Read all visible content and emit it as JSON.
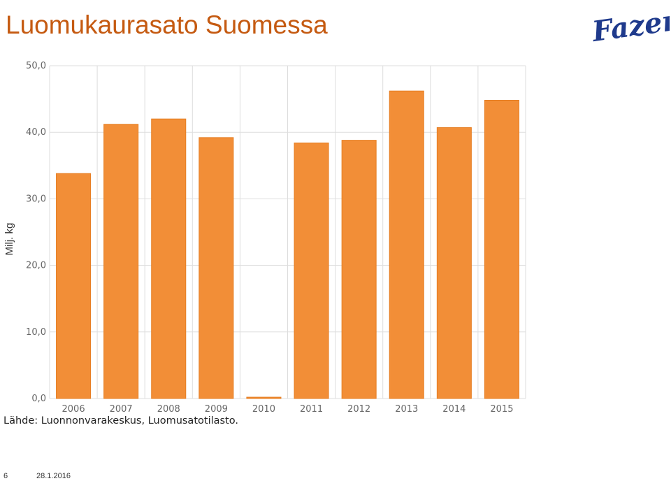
{
  "slide": {
    "title": "Luomukaurasato Suomessa",
    "logo_text": "Fazer",
    "source": "Lähde: Luonnonvarakeskus, Luomusatotilasto.",
    "page_number": "6",
    "date": "28.1.2016"
  },
  "colors": {
    "title": "#c55a11",
    "bar": "#f28e37",
    "logo": "#1f3a8c",
    "grid": "#dddddd"
  },
  "chart_data": {
    "type": "bar",
    "categories": [
      "2006",
      "2007",
      "2008",
      "2009",
      "2010",
      "2011",
      "2012",
      "2013",
      "2014",
      "2015"
    ],
    "values": [
      33.8,
      41.2,
      42.0,
      39.2,
      0.2,
      38.4,
      38.8,
      46.2,
      40.7,
      44.8
    ],
    "title": "",
    "xlabel": "",
    "ylabel": "Milj. kg",
    "ylim": [
      0,
      50
    ],
    "yticks": [
      0,
      10,
      20,
      30,
      40,
      50
    ],
    "ytick_labels": [
      "0,0",
      "10,0",
      "20,0",
      "30,0",
      "40,0",
      "50,0"
    ],
    "grid": true,
    "legend": "none"
  }
}
